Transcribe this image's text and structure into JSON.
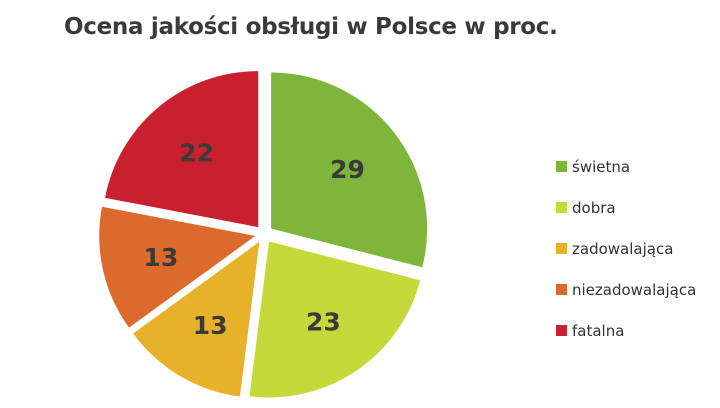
{
  "chart_data": {
    "type": "pie",
    "title": "Ocena jakości obsługi w Polsce w proc.",
    "categories": [
      "świetna",
      "dobra",
      "zadowalająca",
      "niezadowalająca",
      "fatalna"
    ],
    "values": [
      29,
      23,
      13,
      13,
      22
    ],
    "colors": [
      "#7fb53a",
      "#c5d93b",
      "#e8b12a",
      "#dc6a2c",
      "#c8202e"
    ],
    "legend_position": "right",
    "exploded": true
  }
}
